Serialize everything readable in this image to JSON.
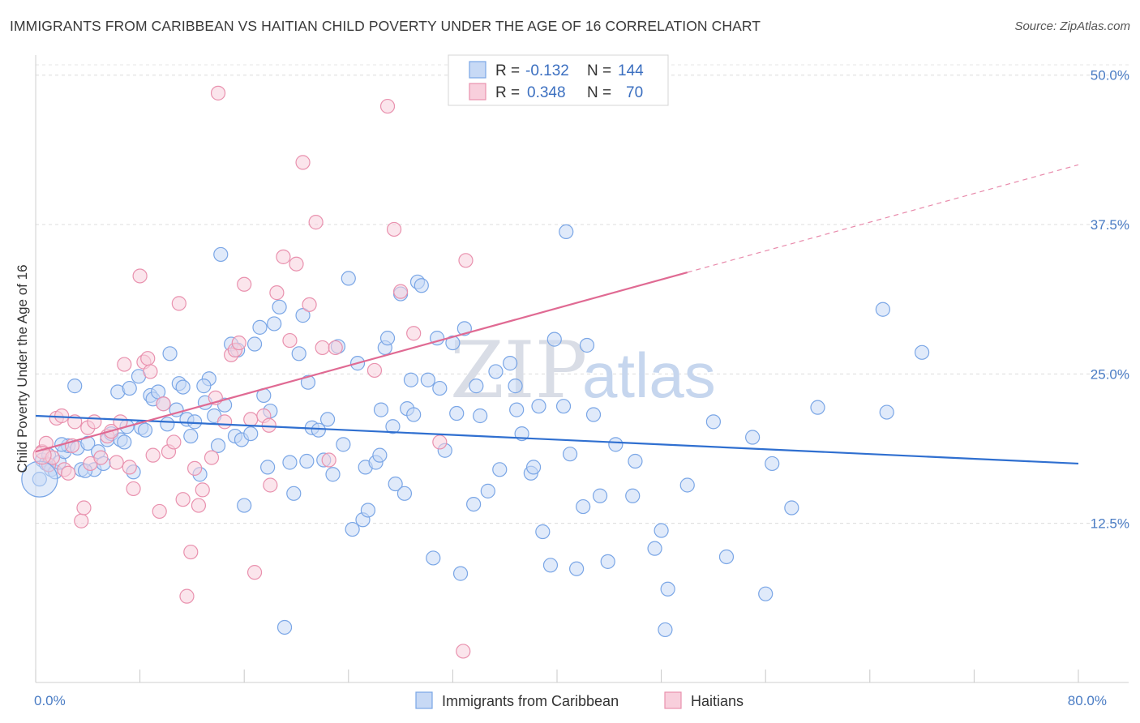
{
  "title": "IMMIGRANTS FROM CARIBBEAN VS HAITIAN CHILD POVERTY UNDER THE AGE OF 16 CORRELATION CHART",
  "source": "Source: ZipAtlas.com",
  "watermark": {
    "zip": "ZIP",
    "atlas": "atlas"
  },
  "legend": {
    "rows": [
      {
        "r_label": "R =",
        "r_value": "-0.132",
        "n_label": "N =",
        "n_value": "144",
        "color": "#a9c4ee"
      },
      {
        "r_label": "R =",
        "r_value": "0.348",
        "n_label": "N =",
        "n_value": "70",
        "color": "#f6b8cc"
      }
    ]
  },
  "bottom_legend": [
    {
      "label": "Immigrants from Caribbean",
      "color": "#a9c4ee"
    },
    {
      "label": "Haitians",
      "color": "#f6b8cc"
    }
  ],
  "chart_data": {
    "type": "scatter",
    "title": "IMMIGRANTS FROM CARIBBEAN VS HAITIAN CHILD POVERTY UNDER THE AGE OF 16 CORRELATION CHART",
    "xlabel": "",
    "ylabel": "Child Poverty Under the Age of 16",
    "xlim": [
      0,
      80
    ],
    "ylim": [
      0,
      51
    ],
    "x_tick_labels": [
      {
        "value": 0,
        "label": "0.0%"
      },
      {
        "value": 80,
        "label": "80.0%"
      }
    ],
    "y_tick_labels": [
      {
        "value": 12.5,
        "label": "12.5%"
      },
      {
        "value": 25.0,
        "label": "25.0%"
      },
      {
        "value": 37.5,
        "label": "37.5%"
      },
      {
        "value": 50.0,
        "label": "50.0%"
      }
    ],
    "grid": true,
    "legend_position": "top-center",
    "series": [
      {
        "name": "Immigrants from Caribbean",
        "color": "#7aa6e6",
        "fill": "#c7d9f5",
        "trend": {
          "x": [
            0,
            80
          ],
          "y": [
            21.5,
            17.5
          ],
          "dashed_from": null
        },
        "points": [
          [
            0.3,
            16.2
          ],
          [
            0.5,
            17.8
          ],
          [
            0.8,
            17.5
          ],
          [
            1.0,
            18.2
          ],
          [
            1.2,
            17.0
          ],
          [
            1.5,
            16.8
          ],
          [
            1.8,
            17.6
          ],
          [
            2.2,
            18.5
          ],
          [
            2.5,
            19.0
          ],
          [
            3.0,
            24.0
          ],
          [
            3.2,
            18.8
          ],
          [
            3.5,
            17.0
          ],
          [
            4.0,
            19.2
          ],
          [
            4.5,
            17.0
          ],
          [
            4.8,
            18.5
          ],
          [
            5.2,
            17.5
          ],
          [
            5.5,
            19.5
          ],
          [
            5.8,
            20.0
          ],
          [
            6.3,
            23.5
          ],
          [
            6.5,
            19.5
          ],
          [
            6.8,
            19.3
          ],
          [
            7.2,
            23.8
          ],
          [
            7.5,
            16.8
          ],
          [
            7.9,
            24.8
          ],
          [
            8.1,
            20.5
          ],
          [
            8.4,
            20.3
          ],
          [
            8.8,
            23.2
          ],
          [
            9.0,
            22.9
          ],
          [
            9.4,
            23.5
          ],
          [
            10.1,
            20.8
          ],
          [
            10.3,
            26.7
          ],
          [
            10.8,
            22.0
          ],
          [
            11.0,
            24.2
          ],
          [
            11.3,
            23.9
          ],
          [
            11.6,
            21.2
          ],
          [
            11.9,
            19.8
          ],
          [
            12.2,
            21.0
          ],
          [
            12.6,
            16.6
          ],
          [
            13.0,
            22.6
          ],
          [
            13.3,
            24.6
          ],
          [
            13.7,
            21.5
          ],
          [
            14.0,
            19.0
          ],
          [
            14.2,
            35.0
          ],
          [
            14.5,
            22.4
          ],
          [
            15.0,
            27.5
          ],
          [
            15.3,
            19.8
          ],
          [
            15.8,
            19.5
          ],
          [
            16.0,
            14.0
          ],
          [
            16.5,
            20.0
          ],
          [
            16.8,
            27.5
          ],
          [
            17.2,
            28.9
          ],
          [
            17.5,
            23.2
          ],
          [
            17.8,
            17.2
          ],
          [
            18.0,
            21.9
          ],
          [
            18.3,
            29.2
          ],
          [
            18.7,
            30.6
          ],
          [
            19.1,
            3.8
          ],
          [
            19.5,
            17.6
          ],
          [
            19.8,
            15.0
          ],
          [
            20.2,
            26.7
          ],
          [
            20.5,
            29.9
          ],
          [
            20.9,
            24.3
          ],
          [
            21.2,
            20.5
          ],
          [
            21.7,
            20.3
          ],
          [
            22.1,
            17.8
          ],
          [
            22.4,
            21.2
          ],
          [
            22.8,
            16.6
          ],
          [
            23.2,
            27.3
          ],
          [
            23.6,
            19.1
          ],
          [
            24.0,
            33.0
          ],
          [
            24.3,
            12.0
          ],
          [
            24.7,
            25.9
          ],
          [
            25.1,
            12.8
          ],
          [
            25.3,
            17.2
          ],
          [
            25.5,
            13.6
          ],
          [
            26.1,
            17.6
          ],
          [
            26.4,
            18.2
          ],
          [
            26.8,
            27.2
          ],
          [
            27.0,
            28.0
          ],
          [
            27.4,
            20.6
          ],
          [
            27.6,
            15.8
          ],
          [
            28.0,
            31.7
          ],
          [
            28.3,
            15.0
          ],
          [
            28.5,
            22.1
          ],
          [
            28.8,
            24.5
          ],
          [
            29.0,
            21.6
          ],
          [
            29.3,
            32.7
          ],
          [
            29.6,
            32.4
          ],
          [
            30.1,
            24.5
          ],
          [
            30.5,
            9.6
          ],
          [
            30.8,
            28.0
          ],
          [
            31.0,
            23.8
          ],
          [
            31.4,
            18.6
          ],
          [
            32.0,
            27.6
          ],
          [
            32.3,
            21.7
          ],
          [
            32.6,
            8.3
          ],
          [
            32.9,
            28.8
          ],
          [
            33.6,
            14.1
          ],
          [
            33.8,
            24.0
          ],
          [
            34.1,
            21.5
          ],
          [
            34.7,
            15.2
          ],
          [
            35.3,
            25.2
          ],
          [
            35.6,
            17.0
          ],
          [
            36.4,
            25.9
          ],
          [
            36.8,
            24.0
          ],
          [
            36.9,
            22.0
          ],
          [
            37.3,
            20.0
          ],
          [
            38.0,
            16.7
          ],
          [
            38.2,
            17.2
          ],
          [
            38.6,
            22.3
          ],
          [
            38.9,
            11.8
          ],
          [
            39.5,
            9.0
          ],
          [
            39.8,
            27.9
          ],
          [
            40.5,
            22.3
          ],
          [
            40.7,
            36.9
          ],
          [
            41.0,
            18.3
          ],
          [
            41.5,
            8.7
          ],
          [
            42.0,
            13.9
          ],
          [
            42.3,
            27.4
          ],
          [
            42.8,
            21.6
          ],
          [
            43.3,
            14.8
          ],
          [
            43.9,
            9.3
          ],
          [
            44.5,
            19.1
          ],
          [
            45.8,
            14.8
          ],
          [
            46.0,
            17.7
          ],
          [
            47.5,
            10.4
          ],
          [
            48.0,
            11.9
          ],
          [
            48.3,
            3.6
          ],
          [
            48.5,
            7.0
          ],
          [
            50.0,
            15.7
          ],
          [
            52.0,
            21.0
          ],
          [
            53.0,
            9.7
          ],
          [
            55.0,
            19.7
          ],
          [
            56.0,
            6.6
          ],
          [
            56.5,
            17.5
          ],
          [
            58.0,
            13.8
          ],
          [
            60.0,
            22.2
          ],
          [
            65.0,
            30.4
          ],
          [
            65.3,
            21.8
          ],
          [
            68.0,
            26.8
          ],
          [
            15.5,
            27.0
          ],
          [
            2.0,
            19.1
          ],
          [
            9.8,
            22.5
          ],
          [
            12.9,
            24.0
          ],
          [
            20.8,
            17.7
          ],
          [
            7.0,
            20.6
          ],
          [
            3.8,
            16.9
          ],
          [
            26.5,
            22.0
          ]
        ]
      },
      {
        "name": "Haitians",
        "color": "#e991ae",
        "fill": "#f8cfdc",
        "trend": {
          "x": [
            0,
            50
          ],
          "y": [
            18.5,
            33.5
          ],
          "dash_x": [
            50,
            80
          ],
          "dash_y": [
            33.5,
            42.5
          ]
        },
        "points": [
          [
            0.5,
            18.5
          ],
          [
            0.8,
            19.2
          ],
          [
            1.0,
            17.4
          ],
          [
            1.3,
            18.0
          ],
          [
            1.6,
            21.3
          ],
          [
            2.0,
            21.5
          ],
          [
            2.2,
            17.0
          ],
          [
            2.5,
            16.7
          ],
          [
            2.8,
            19.0
          ],
          [
            3.0,
            21.0
          ],
          [
            3.5,
            12.7
          ],
          [
            3.7,
            13.8
          ],
          [
            4.0,
            20.5
          ],
          [
            4.2,
            17.5
          ],
          [
            4.5,
            21.0
          ],
          [
            5.0,
            18.0
          ],
          [
            5.5,
            19.8
          ],
          [
            5.8,
            20.2
          ],
          [
            6.2,
            17.6
          ],
          [
            6.5,
            21.0
          ],
          [
            6.8,
            25.8
          ],
          [
            7.2,
            17.2
          ],
          [
            7.5,
            15.4
          ],
          [
            8.0,
            33.2
          ],
          [
            8.3,
            26.0
          ],
          [
            8.6,
            26.3
          ],
          [
            9.0,
            18.2
          ],
          [
            9.5,
            13.5
          ],
          [
            9.8,
            22.5
          ],
          [
            10.2,
            18.5
          ],
          [
            10.6,
            19.3
          ],
          [
            11.0,
            30.9
          ],
          [
            11.3,
            14.5
          ],
          [
            11.6,
            6.4
          ],
          [
            11.9,
            10.1
          ],
          [
            12.2,
            17.1
          ],
          [
            12.5,
            14.0
          ],
          [
            12.8,
            15.3
          ],
          [
            13.5,
            18.0
          ],
          [
            13.8,
            23.0
          ],
          [
            14.5,
            21.0
          ],
          [
            15.0,
            26.6
          ],
          [
            15.3,
            27.0
          ],
          [
            15.6,
            27.6
          ],
          [
            16.0,
            32.5
          ],
          [
            16.5,
            21.2
          ],
          [
            16.8,
            8.4
          ],
          [
            17.5,
            21.5
          ],
          [
            17.9,
            20.7
          ],
          [
            18.0,
            15.7
          ],
          [
            18.5,
            31.8
          ],
          [
            19.0,
            34.8
          ],
          [
            19.5,
            27.8
          ],
          [
            20.0,
            34.2
          ],
          [
            20.5,
            42.7
          ],
          [
            21.0,
            30.8
          ],
          [
            21.5,
            37.7
          ],
          [
            22.0,
            27.2
          ],
          [
            22.5,
            17.8
          ],
          [
            23.0,
            27.2
          ],
          [
            26.0,
            25.3
          ],
          [
            27.0,
            47.4
          ],
          [
            27.5,
            37.1
          ],
          [
            28.0,
            31.9
          ],
          [
            29.0,
            28.4
          ],
          [
            31.0,
            19.3
          ],
          [
            33.0,
            34.5
          ],
          [
            32.8,
            1.8
          ],
          [
            14.0,
            48.5
          ],
          [
            8.8,
            25.2
          ]
        ]
      }
    ]
  },
  "axis": {
    "ylabel": "Child Poverty Under the Age of 16"
  }
}
